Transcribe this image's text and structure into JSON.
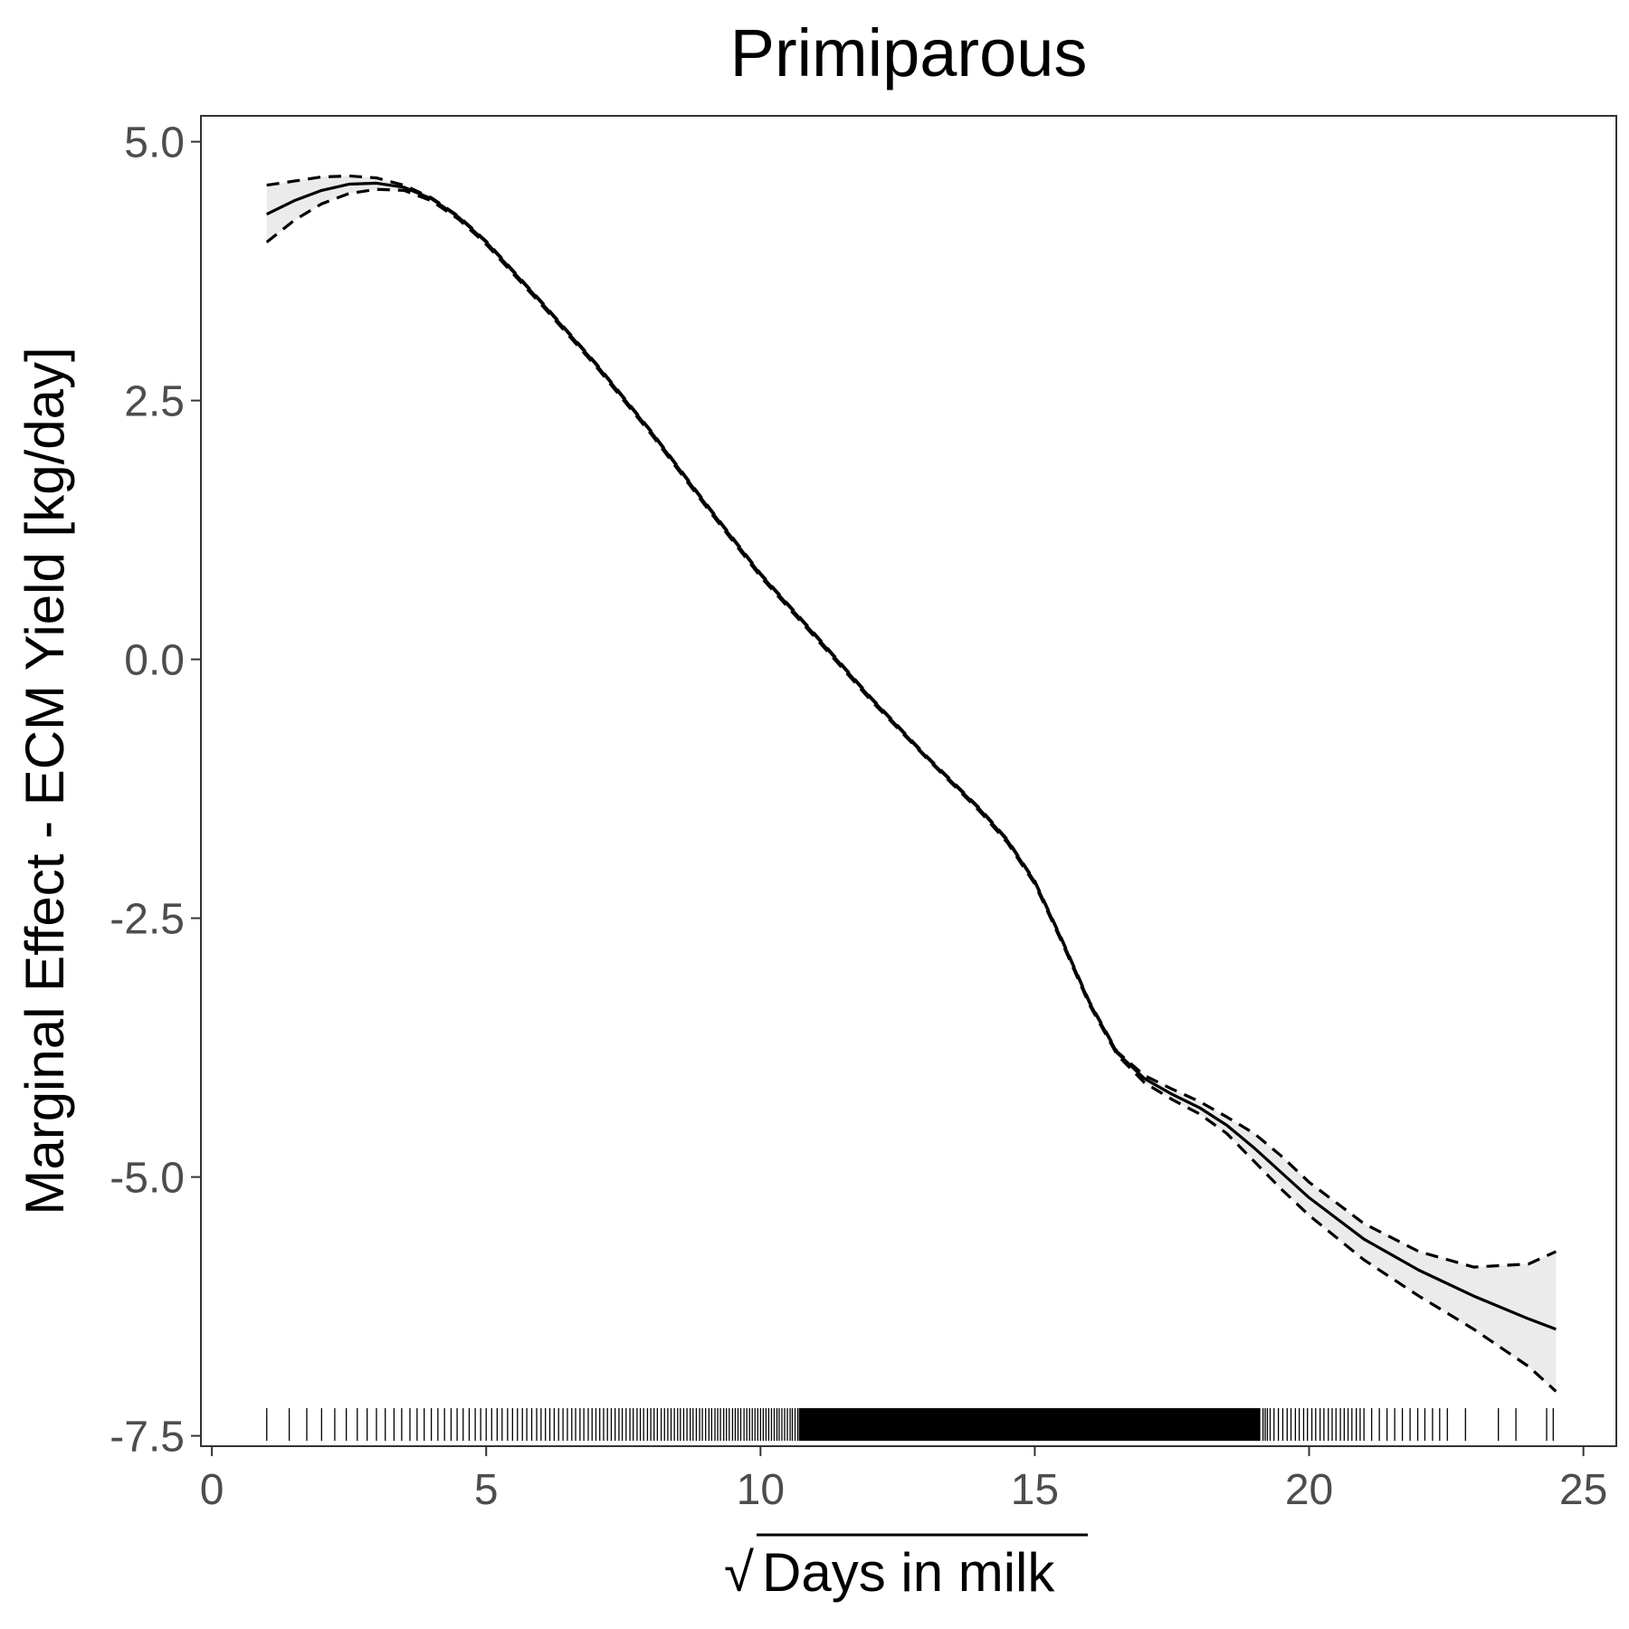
{
  "chart_data": {
    "type": "line",
    "title": "Primiparous",
    "xlabel": "Days in milk",
    "xlabel_prefix": "√",
    "ylabel": "Marginal Effect - ECM Yield [kg/day]",
    "xlim": [
      -0.2,
      25.6
    ],
    "ylim": [
      -7.6,
      5.25
    ],
    "xticks": [
      {
        "value": 0,
        "label": "0"
      },
      {
        "value": 5,
        "label": "5"
      },
      {
        "value": 10,
        "label": "10"
      },
      {
        "value": 15,
        "label": "15"
      },
      {
        "value": 20,
        "label": "20"
      },
      {
        "value": 25,
        "label": "25"
      }
    ],
    "yticks": [
      {
        "value": 5.0,
        "label": "5.0"
      },
      {
        "value": 2.5,
        "label": "2.5"
      },
      {
        "value": 0.0,
        "label": "0.0"
      },
      {
        "value": -2.5,
        "label": "-2.5"
      },
      {
        "value": -5.0,
        "label": "-5.0"
      },
      {
        "value": -7.5,
        "label": "-7.5"
      }
    ],
    "grid": false,
    "x": [
      1,
      1.5,
      2,
      2.5,
      3,
      3.5,
      4,
      4.5,
      5,
      6,
      7,
      8,
      9,
      10,
      11,
      12,
      13,
      14,
      14.5,
      15,
      15.5,
      16,
      16.5,
      17,
      17.5,
      18,
      18.5,
      19,
      19.5,
      20,
      21,
      22,
      23,
      24,
      24.5
    ],
    "series": [
      {
        "role": "estimate",
        "style": "solid",
        "values": [
          4.3,
          4.43,
          4.53,
          4.59,
          4.6,
          4.56,
          4.45,
          4.27,
          4.03,
          3.45,
          2.85,
          2.2,
          1.5,
          0.82,
          0.23,
          -0.37,
          -0.93,
          -1.45,
          -1.75,
          -2.15,
          -2.72,
          -3.32,
          -3.8,
          -4.05,
          -4.2,
          -4.33,
          -4.5,
          -4.72,
          -4.96,
          -5.2,
          -5.6,
          -5.9,
          -6.15,
          -6.37,
          -6.47
        ]
      },
      {
        "role": "upper",
        "style": "dashed",
        "values": [
          4.58,
          4.62,
          4.66,
          4.67,
          4.65,
          4.58,
          4.46,
          4.28,
          4.04,
          3.46,
          2.86,
          2.21,
          1.51,
          0.83,
          0.24,
          -0.36,
          -0.92,
          -1.44,
          -1.74,
          -2.14,
          -2.71,
          -3.31,
          -3.79,
          -4.02,
          -4.15,
          -4.27,
          -4.42,
          -4.58,
          -4.8,
          -5.05,
          -5.45,
          -5.72,
          -5.87,
          -5.84,
          -5.72
        ]
      },
      {
        "role": "lower",
        "style": "dashed",
        "values": [
          4.03,
          4.24,
          4.4,
          4.5,
          4.54,
          4.53,
          4.43,
          4.25,
          4.01,
          3.43,
          2.83,
          2.18,
          1.48,
          0.8,
          0.21,
          -0.39,
          -0.94,
          -1.47,
          -1.77,
          -2.17,
          -2.74,
          -3.34,
          -3.82,
          -4.09,
          -4.25,
          -4.39,
          -4.58,
          -4.85,
          -5.12,
          -5.37,
          -5.8,
          -6.15,
          -6.47,
          -6.83,
          -7.07
        ]
      }
    ],
    "ribbon_color": "#ebebeb",
    "line_color": "#000000",
    "rug": [
      1.0,
      1.41,
      1.73,
      2.0,
      2.24,
      2.45,
      2.65,
      2.83,
      3.0,
      3.16,
      3.32,
      3.46,
      3.61,
      3.74,
      3.87,
      4.0,
      4.12,
      4.24,
      4.36,
      4.47,
      4.58,
      4.69,
      4.8,
      4.9,
      5.0,
      5.1,
      5.2,
      5.29,
      5.39,
      5.48,
      5.57,
      5.66,
      5.74,
      5.83,
      5.92,
      6.0,
      6.08,
      6.16,
      6.24,
      6.32,
      6.4,
      6.48,
      6.56,
      6.63,
      6.71,
      6.78,
      6.86,
      6.93,
      7.0,
      7.07,
      7.14,
      7.21,
      7.28,
      7.35,
      7.42,
      7.48,
      7.55,
      7.62,
      7.68,
      7.75,
      7.81,
      7.87,
      7.94,
      8.0,
      8.06,
      8.12,
      8.19,
      8.25,
      8.31,
      8.37,
      8.43,
      8.49,
      8.54,
      8.6,
      8.66,
      8.72,
      8.77,
      8.83,
      8.89,
      8.94,
      9.0,
      9.06,
      9.11,
      9.17,
      9.22,
      9.27,
      9.33,
      9.38,
      9.43,
      9.49,
      9.54,
      9.59,
      9.64,
      9.7,
      9.75,
      9.8,
      9.85,
      9.9,
      9.95,
      10.0,
      10.05,
      10.1,
      10.15,
      10.2,
      10.25,
      10.3,
      10.34,
      10.39,
      10.44,
      10.49,
      10.54,
      10.58,
      10.63,
      10.68,
      19.1,
      19.16,
      19.2,
      19.24,
      19.29,
      19.36,
      19.44,
      19.52,
      19.6,
      19.67,
      19.75,
      19.82,
      19.9,
      19.97,
      20.05,
      20.12,
      20.2,
      20.27,
      20.35,
      20.42,
      20.49,
      20.57,
      20.64,
      20.71,
      20.78,
      20.86,
      20.93,
      21.0,
      21.14,
      21.28,
      21.42,
      21.56,
      21.7,
      21.84,
      21.98,
      22.11,
      22.25,
      22.38,
      22.52,
      22.85,
      23.45,
      23.77,
      24.33,
      24.45
    ],
    "rug_dense_range": [
      10.7,
      19.1
    ]
  }
}
